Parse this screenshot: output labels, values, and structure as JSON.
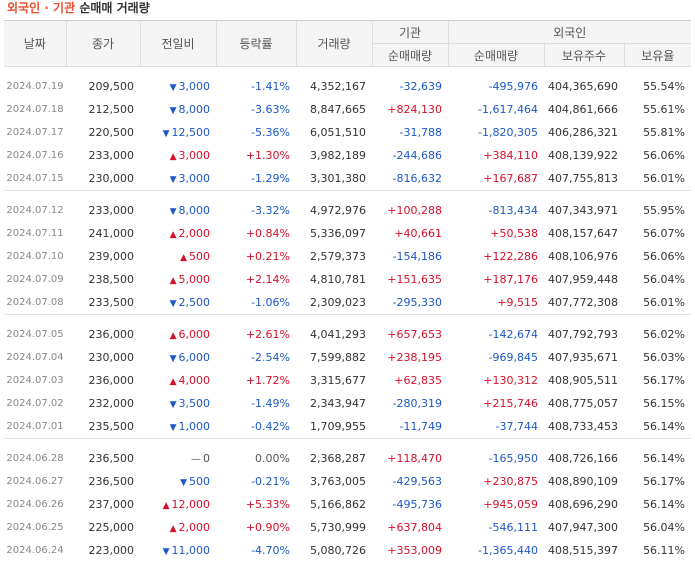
{
  "title": {
    "part1": "외국인 · 기관",
    "part2": "순매매 거래량"
  },
  "headers": {
    "date": "날짜",
    "close": "종가",
    "change": "전일비",
    "rate": "등락률",
    "volume": "거래량",
    "inst": "기관",
    "foreign": "외국인",
    "inst_net": "순매매량",
    "foreign_net": "순매매량",
    "holdings": "보유주수",
    "ratio": "보유율"
  },
  "groups": [
    [
      {
        "date": "2024.07.19",
        "close": "209,500",
        "dir": "down",
        "change": "3,000",
        "rate": "-1.41%",
        "volume": "4,352,167",
        "inst": "-32,639",
        "foreign": "-495,976",
        "holdings": "404,365,690",
        "ratio": "55.54%"
      },
      {
        "date": "2024.07.18",
        "close": "212,500",
        "dir": "down",
        "change": "8,000",
        "rate": "-3.63%",
        "volume": "8,847,665",
        "inst": "+824,130",
        "foreign": "-1,617,464",
        "holdings": "404,861,666",
        "ratio": "55.61%"
      },
      {
        "date": "2024.07.17",
        "close": "220,500",
        "dir": "down",
        "change": "12,500",
        "rate": "-5.36%",
        "volume": "6,051,510",
        "inst": "-31,788",
        "foreign": "-1,820,305",
        "holdings": "406,286,321",
        "ratio": "55.81%"
      },
      {
        "date": "2024.07.16",
        "close": "233,000",
        "dir": "up",
        "change": "3,000",
        "rate": "+1.30%",
        "volume": "3,982,189",
        "inst": "-244,686",
        "foreign": "+384,110",
        "holdings": "408,139,922",
        "ratio": "56.06%"
      },
      {
        "date": "2024.07.15",
        "close": "230,000",
        "dir": "down",
        "change": "3,000",
        "rate": "-1.29%",
        "volume": "3,301,380",
        "inst": "-816,632",
        "foreign": "+167,687",
        "holdings": "407,755,813",
        "ratio": "56.01%"
      }
    ],
    [
      {
        "date": "2024.07.12",
        "close": "233,000",
        "dir": "down",
        "change": "8,000",
        "rate": "-3.32%",
        "volume": "4,972,976",
        "inst": "+100,288",
        "foreign": "-813,434",
        "holdings": "407,343,971",
        "ratio": "55.95%"
      },
      {
        "date": "2024.07.11",
        "close": "241,000",
        "dir": "up",
        "change": "2,000",
        "rate": "+0.84%",
        "volume": "5,336,097",
        "inst": "+40,661",
        "foreign": "+50,538",
        "holdings": "408,157,647",
        "ratio": "56.07%"
      },
      {
        "date": "2024.07.10",
        "close": "239,000",
        "dir": "up",
        "change": "500",
        "rate": "+0.21%",
        "volume": "2,579,373",
        "inst": "-154,186",
        "foreign": "+122,286",
        "holdings": "408,106,976",
        "ratio": "56.06%"
      },
      {
        "date": "2024.07.09",
        "close": "238,500",
        "dir": "up",
        "change": "5,000",
        "rate": "+2.14%",
        "volume": "4,810,781",
        "inst": "+151,635",
        "foreign": "+187,176",
        "holdings": "407,959,448",
        "ratio": "56.04%"
      },
      {
        "date": "2024.07.08",
        "close": "233,500",
        "dir": "down",
        "change": "2,500",
        "rate": "-1.06%",
        "volume": "2,309,023",
        "inst": "-295,330",
        "foreign": "+9,515",
        "holdings": "407,772,308",
        "ratio": "56.01%"
      }
    ],
    [
      {
        "date": "2024.07.05",
        "close": "236,000",
        "dir": "up",
        "change": "6,000",
        "rate": "+2.61%",
        "volume": "4,041,293",
        "inst": "+657,653",
        "foreign": "-142,674",
        "holdings": "407,792,793",
        "ratio": "56.02%"
      },
      {
        "date": "2024.07.04",
        "close": "230,000",
        "dir": "down",
        "change": "6,000",
        "rate": "-2.54%",
        "volume": "7,599,882",
        "inst": "+238,195",
        "foreign": "-969,845",
        "holdings": "407,935,671",
        "ratio": "56.03%"
      },
      {
        "date": "2024.07.03",
        "close": "236,000",
        "dir": "up",
        "change": "4,000",
        "rate": "+1.72%",
        "volume": "3,315,677",
        "inst": "+62,835",
        "foreign": "+130,312",
        "holdings": "408,905,511",
        "ratio": "56.17%"
      },
      {
        "date": "2024.07.02",
        "close": "232,000",
        "dir": "down",
        "change": "3,500",
        "rate": "-1.49%",
        "volume": "2,343,947",
        "inst": "-280,319",
        "foreign": "+215,746",
        "holdings": "408,775,057",
        "ratio": "56.15%"
      },
      {
        "date": "2024.07.01",
        "close": "235,500",
        "dir": "down",
        "change": "1,000",
        "rate": "-0.42%",
        "volume": "1,709,955",
        "inst": "-11,749",
        "foreign": "-37,744",
        "holdings": "408,733,453",
        "ratio": "56.14%"
      }
    ],
    [
      {
        "date": "2024.06.28",
        "close": "236,500",
        "dir": "flat",
        "change": "0",
        "rate": "0.00%",
        "volume": "2,368,287",
        "inst": "+118,470",
        "foreign": "-165,950",
        "holdings": "408,726,166",
        "ratio": "56.14%"
      },
      {
        "date": "2024.06.27",
        "close": "236,500",
        "dir": "down",
        "change": "500",
        "rate": "-0.21%",
        "volume": "3,763,005",
        "inst": "-429,563",
        "foreign": "+230,875",
        "holdings": "408,890,109",
        "ratio": "56.17%"
      },
      {
        "date": "2024.06.26",
        "close": "237,000",
        "dir": "up",
        "change": "12,000",
        "rate": "+5.33%",
        "volume": "5,166,862",
        "inst": "-495,736",
        "foreign": "+945,059",
        "holdings": "408,696,290",
        "ratio": "56.14%"
      },
      {
        "date": "2024.06.25",
        "close": "225,000",
        "dir": "up",
        "change": "2,000",
        "rate": "+0.90%",
        "volume": "5,730,999",
        "inst": "+637,804",
        "foreign": "-546,111",
        "holdings": "407,947,300",
        "ratio": "56.04%"
      },
      {
        "date": "2024.06.24",
        "close": "223,000",
        "dir": "down",
        "change": "11,000",
        "rate": "-4.70%",
        "volume": "5,080,726",
        "inst": "+353,009",
        "foreign": "-1,365,440",
        "holdings": "408,515,397",
        "ratio": "56.11%"
      }
    ]
  ],
  "colors": {
    "up": "#d5102a",
    "down": "#1d58c7",
    "title": "#e8502f"
  },
  "icons": {
    "up": "triangle-up-icon",
    "down": "triangle-down-icon",
    "flat": "dash-icon"
  }
}
